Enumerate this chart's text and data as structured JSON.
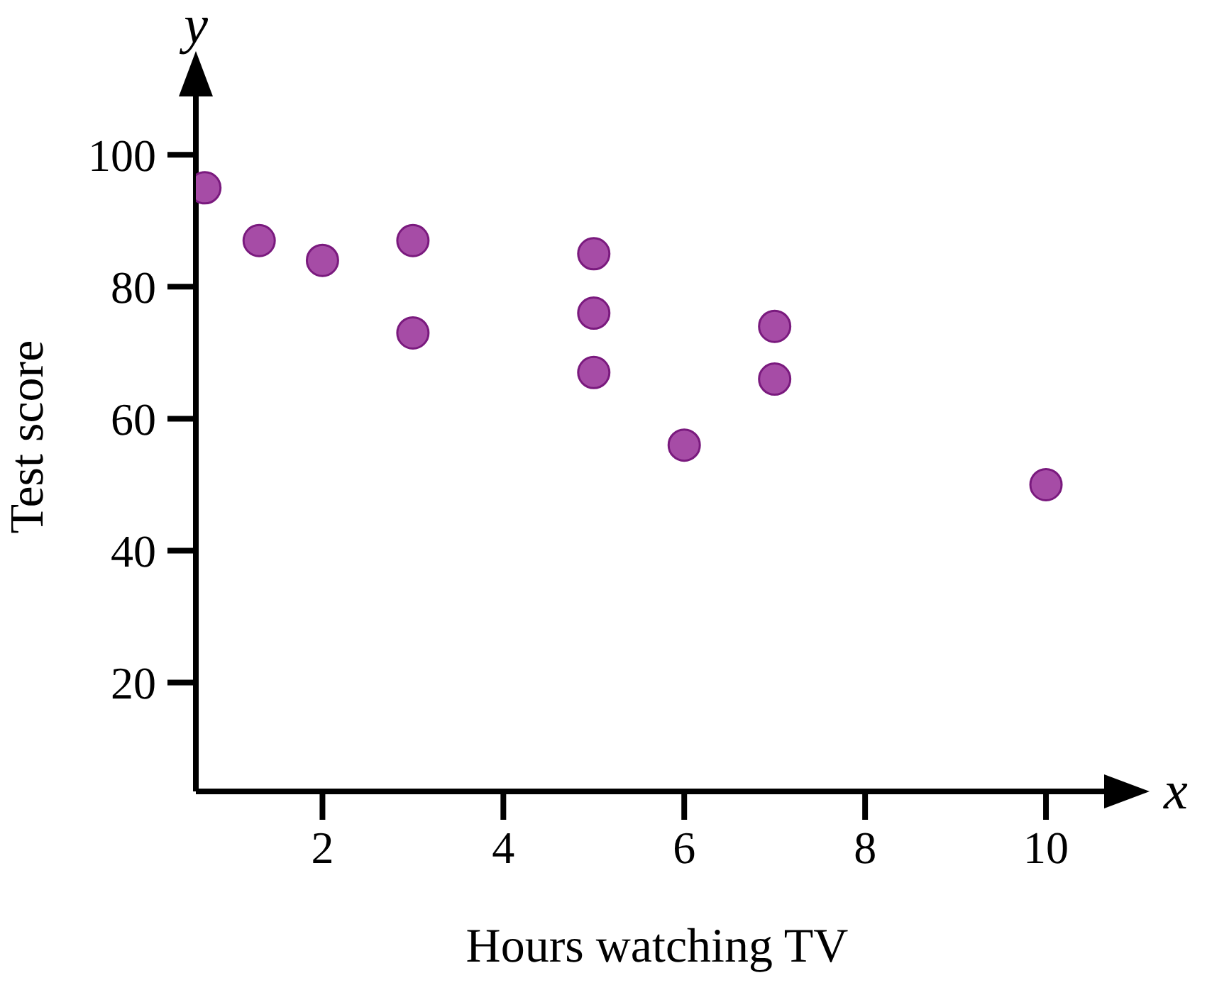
{
  "chart_data": {
    "type": "scatter",
    "xlabel": "Hours watching TV",
    "ylabel": "Test score",
    "annotations": [
      "x",
      "y"
    ],
    "x": [
      0.7,
      1.3,
      2,
      3,
      3,
      5,
      5,
      5,
      6,
      7,
      7,
      10
    ],
    "values": [
      95,
      87,
      84,
      87,
      73,
      85,
      76,
      67,
      56,
      74,
      66,
      50
    ],
    "color": "#a64ca6",
    "marker": "circle",
    "grid": false,
    "legend": false,
    "xlim": [
      0.6,
      10.8
    ],
    "xticks": [
      2,
      4,
      6,
      8,
      10
    ],
    "ylim": [
      3.5,
      111
    ],
    "yticks": [
      20,
      40,
      60,
      80,
      100
    ]
  }
}
